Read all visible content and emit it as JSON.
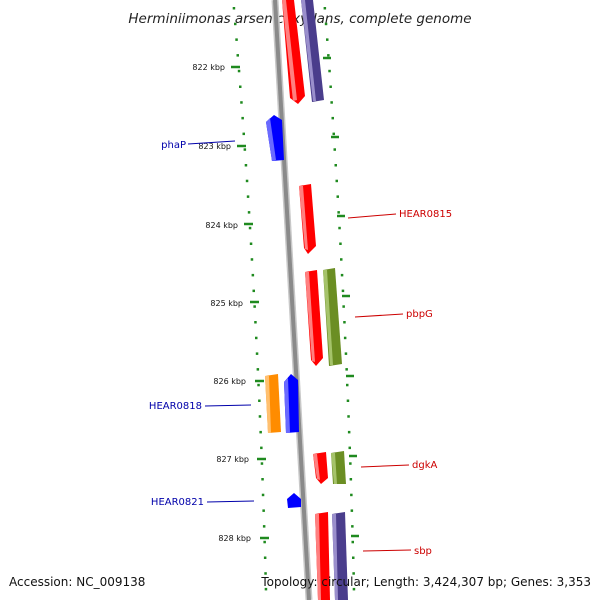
{
  "title": "Herminiimonas arsenicoxydans, complete genome",
  "accession": "Accession: NC_009138",
  "topology": "Topology: circular; Length: 3,424,307 bp; Genes: 3,353",
  "colors": {
    "tick": "#1f8a1f",
    "backbone": "#8a8a8a",
    "forward_cds": "#ff0000",
    "reverse_cds": "#0000ff",
    "blast_hit": "#4a3d8c",
    "cog_green": "#6b8e23",
    "cog_orange": "#ff8c00",
    "label_forward": "#cc0000",
    "label_reverse": "#0000aa"
  },
  "ticks": [
    {
      "label": "822 kbp"
    },
    {
      "label": "823 kbp"
    },
    {
      "label": "824 kbp"
    },
    {
      "label": "825 kbp"
    },
    {
      "label": "826 kbp"
    },
    {
      "label": "827 kbp"
    },
    {
      "label": "828 kbp"
    }
  ],
  "gene_labels": [
    {
      "name": "phaP",
      "strand": "reverse"
    },
    {
      "name": "HEAR0815",
      "strand": "forward"
    },
    {
      "name": "pbpG",
      "strand": "forward"
    },
    {
      "name": "HEAR0818",
      "strand": "reverse"
    },
    {
      "name": "dgkA",
      "strand": "forward"
    },
    {
      "name": "HEAR0821",
      "strand": "reverse"
    },
    {
      "name": "sbp",
      "strand": "forward"
    }
  ]
}
